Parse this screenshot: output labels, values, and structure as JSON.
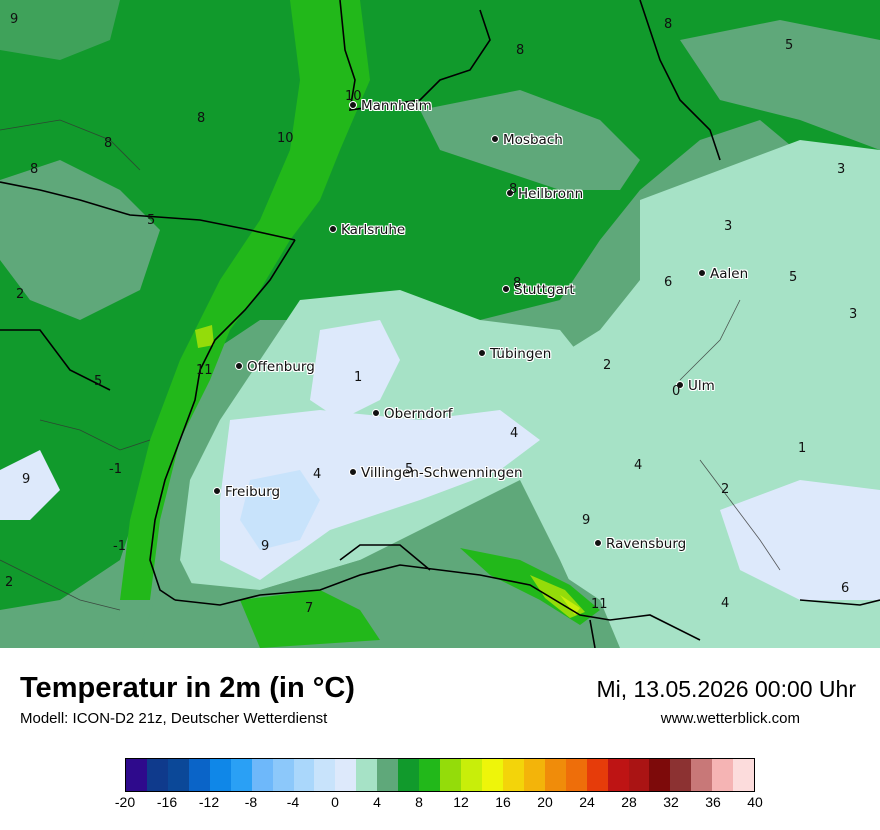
{
  "map": {
    "cities": [
      {
        "name": "Mannheim"
      },
      {
        "name": "Mosbach"
      },
      {
        "name": "Heilbronn"
      },
      {
        "name": "Karlsruhe"
      },
      {
        "name": "Aalen"
      },
      {
        "name": "Stuttgart"
      },
      {
        "name": "Tübingen"
      },
      {
        "name": "Offenburg"
      },
      {
        "name": "Ulm"
      },
      {
        "name": "Oberndorf"
      },
      {
        "name": "Villingen-Schwenningen"
      },
      {
        "name": "Freiburg"
      },
      {
        "name": "Ravensburg"
      }
    ],
    "temperature_labels": [
      "9",
      "8",
      "5",
      "8",
      "8",
      "10",
      "10",
      "8",
      "8",
      "5",
      "3",
      "8",
      "3",
      "6",
      "5",
      "8",
      "3",
      "2",
      "11",
      "1",
      "2",
      "5",
      "0",
      "4",
      "1",
      "9",
      "-1",
      "4",
      "5",
      "4",
      "2",
      "9",
      "-1",
      "9",
      "2",
      "7",
      "11",
      "4",
      "6"
    ]
  },
  "header": {
    "title": "Temperatur in 2m (in °C)",
    "model": "Modell: ICON-D2 21z, Deutscher Wetterdienst",
    "datetime": "Mi, 13.05.2026 00:00 Uhr",
    "website": "www.wetterblick.com"
  },
  "legend": {
    "colors": [
      "#2e0a8c",
      "#0f3a8c",
      "#0b4898",
      "#0a64c8",
      "#0f87e8",
      "#2aa0f5",
      "#6eb8fa",
      "#8cc8fa",
      "#aad7fb",
      "#c8e3fb",
      "#dde9fb",
      "#a6e2c6",
      "#5fa87a",
      "#119a2c",
      "#22b81a",
      "#94dc0a",
      "#c8ee0a",
      "#eef50a",
      "#f3d40a",
      "#f3b40a",
      "#f08c0a",
      "#ee6e0a",
      "#e63c0a",
      "#be1414",
      "#aa1414",
      "#7d0a0a",
      "#8c3232",
      "#c87878",
      "#f5b4b4",
      "#fcdcdc"
    ],
    "ticks": [
      "-20",
      "-16",
      "-12",
      "-8",
      "-4",
      "0",
      "4",
      "8",
      "12",
      "16",
      "20",
      "24",
      "28",
      "32",
      "36",
      "40"
    ]
  }
}
